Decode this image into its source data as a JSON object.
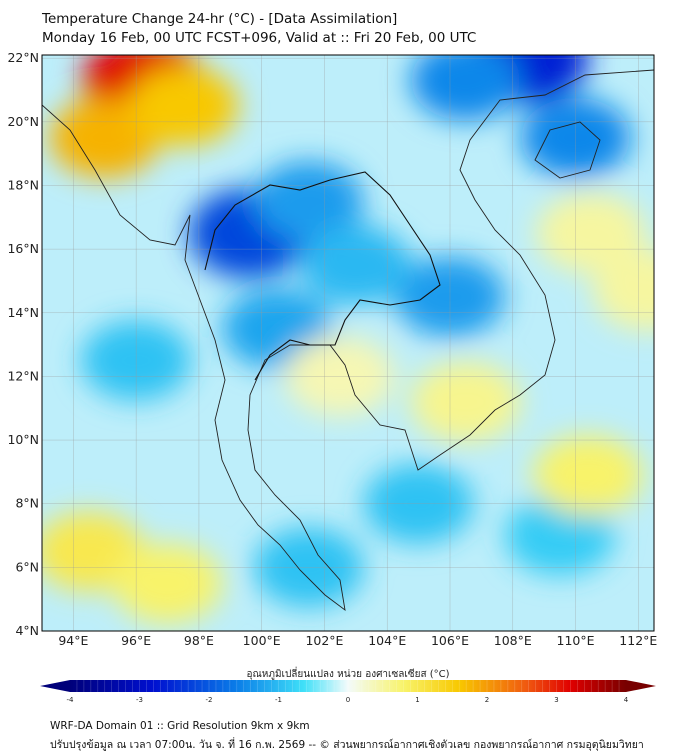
{
  "header": {
    "title": "Temperature Change 24-hr (°C) - [Data Assimilation]",
    "subtitle": "Monday 16 Feb, 00 UTC FCST+096, Valid at :: Fri 20 Feb, 00 UTC"
  },
  "map": {
    "lon_range": [
      93,
      112.5
    ],
    "lat_range": [
      4,
      22.1
    ],
    "lat_labels": [
      "4°N",
      "6°N",
      "8°N",
      "10°N",
      "12°N",
      "14°N",
      "16°N",
      "18°N",
      "20°N",
      "22°N"
    ],
    "lon_labels": [
      "94°E",
      "96°E",
      "98°E",
      "100°E",
      "102°E",
      "104°E",
      "106°E",
      "108°E",
      "110°E",
      "112°E"
    ],
    "features": [
      {
        "lon": 96.2,
        "lat": 21.3,
        "value": 3.2
      },
      {
        "lon": 95.0,
        "lat": 19.5,
        "value": 1.8
      },
      {
        "lon": 97.5,
        "lat": 20.5,
        "value": 1.6
      },
      {
        "lon": 94.5,
        "lat": 6.5,
        "value": 1.0
      },
      {
        "lon": 97.0,
        "lat": 5.5,
        "value": 0.8
      },
      {
        "lon": 108.5,
        "lat": 22.0,
        "value": -2.6
      },
      {
        "lon": 106.5,
        "lat": 21.3,
        "value": -1.5
      },
      {
        "lon": 99.6,
        "lat": 16.5,
        "value": -2.2
      },
      {
        "lon": 101.5,
        "lat": 17.5,
        "value": -1.3
      },
      {
        "lon": 110.0,
        "lat": 19.5,
        "value": -1.5
      },
      {
        "lon": 106.0,
        "lat": 14.5,
        "value": -1.3
      },
      {
        "lon": 103.0,
        "lat": 15.5,
        "value": -1.0
      },
      {
        "lon": 100.5,
        "lat": 13.5,
        "value": -1.2
      },
      {
        "lon": 96.0,
        "lat": 12.5,
        "value": -0.9
      },
      {
        "lon": 105.0,
        "lat": 8.0,
        "value": -0.9
      },
      {
        "lon": 109.5,
        "lat": 7.0,
        "value": -0.8
      },
      {
        "lon": 101.5,
        "lat": 6.0,
        "value": -0.9
      },
      {
        "lon": 110.4,
        "lat": 8.9,
        "value": 0.8
      },
      {
        "lon": 106.5,
        "lat": 11.2,
        "value": 0.6
      },
      {
        "lon": 102.5,
        "lat": 12.0,
        "value": 0.4
      },
      {
        "lon": 110.5,
        "lat": 16.5,
        "value": 0.5
      },
      {
        "lon": 112.3,
        "lat": 14.7,
        "value": 0.5
      }
    ]
  },
  "colorbar": {
    "title": "อุณหภูมิเปลี่ยนแปลง หน่วย องศาเซลเซียส (°C)",
    "range": [
      -4,
      4
    ],
    "ticks": [
      "-4",
      "-3",
      "-2",
      "-1",
      "0",
      "1",
      "2",
      "3",
      "4"
    ]
  },
  "footer": {
    "line1": "WRF-DA Domain 01 :: Grid Resolution 9km x 9km",
    "line2": "ปรับปรุงข้อมูล ณ เวลา 07:00น. วัน จ. ที่ 16 ก.พ. 2569 -- © ส่วนพยากรณ์อากาศเชิงตัวเลข กองพยากรณ์อากาศ กรมอุตุนิยมวิทยา"
  }
}
